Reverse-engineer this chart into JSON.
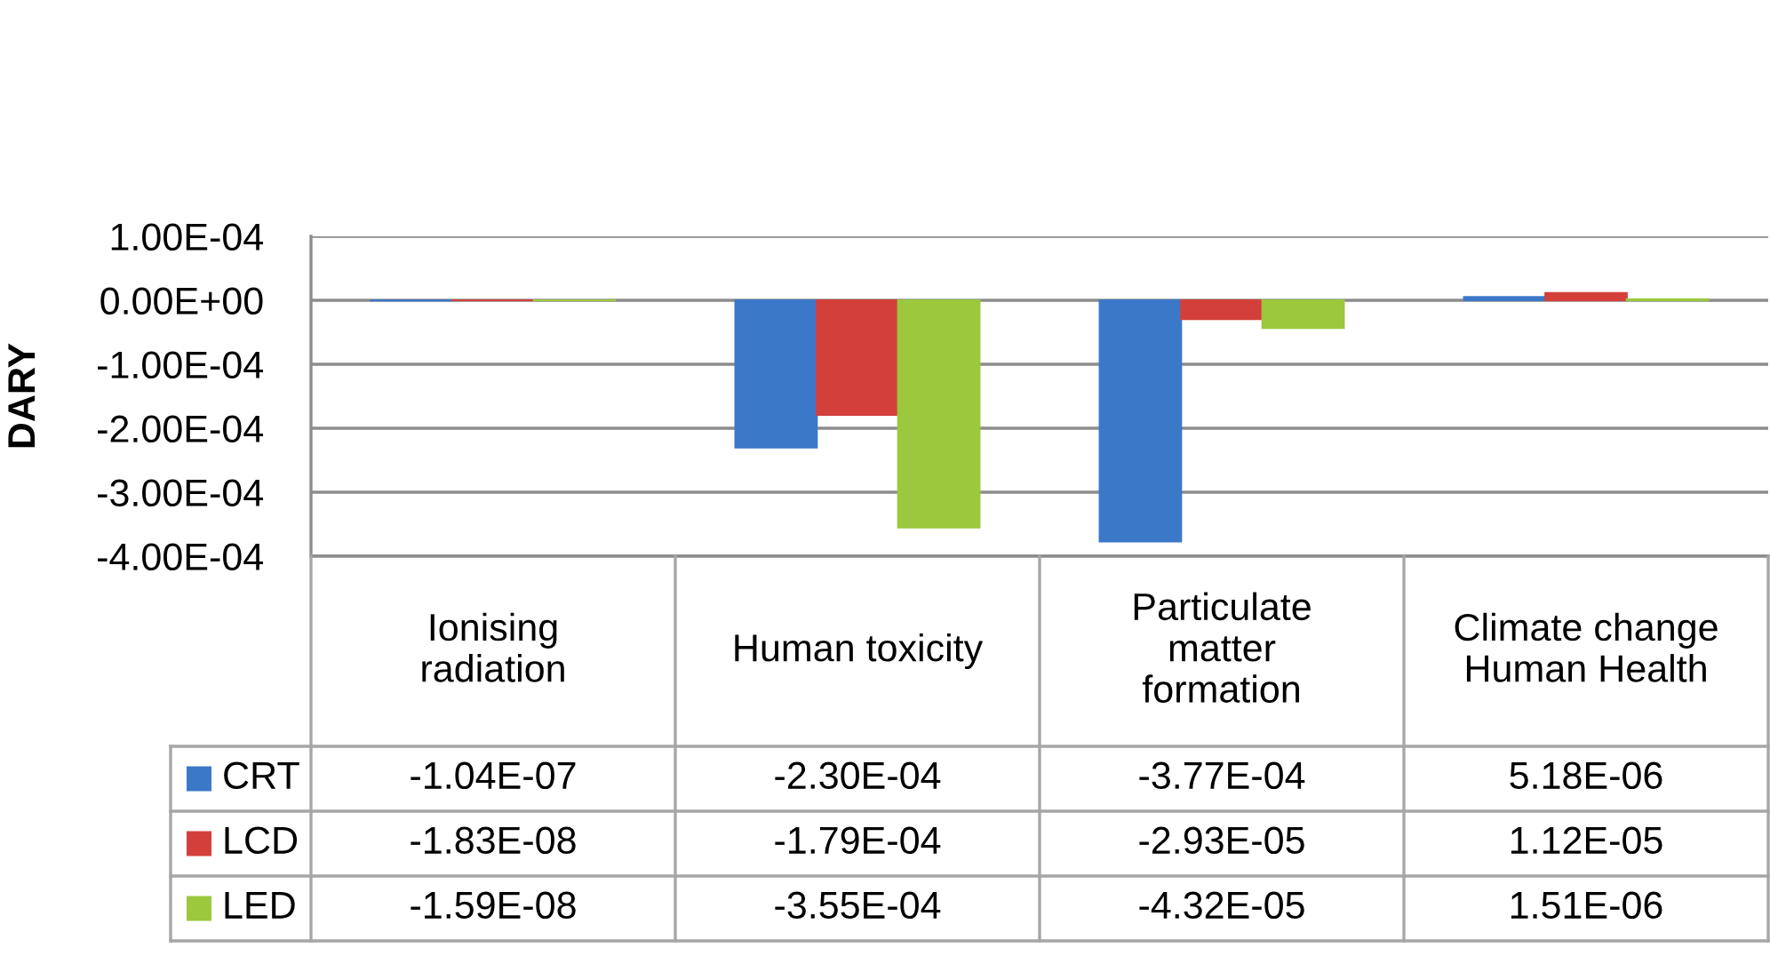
{
  "chart_data": {
    "type": "bar",
    "ylabel": "DARY",
    "categories": [
      "Ionising\nradiation",
      "Human toxicity",
      "Particulate\nmatter\nformation",
      "Climate change\nHuman Health"
    ],
    "series": [
      {
        "name": "CRT",
        "color": "#3c78c8",
        "values": [
          -1.04e-07,
          -0.00023,
          -0.000377,
          5.18e-06
        ],
        "value_labels": [
          "-1.04E-07",
          "-2.30E-04",
          "-3.77E-04",
          "5.18E-06"
        ]
      },
      {
        "name": "LCD",
        "color": "#d3403c",
        "values": [
          -1.83e-08,
          -0.000179,
          -2.93e-05,
          1.12e-05
        ],
        "value_labels": [
          "-1.83E-08",
          "-1.79E-04",
          "-2.93E-05",
          "1.12E-05"
        ]
      },
      {
        "name": "LED",
        "color": "#9bc83c",
        "values": [
          -1.59e-08,
          -0.000355,
          -4.32e-05,
          1.51e-06
        ],
        "value_labels": [
          "-1.59E-08",
          "-3.55E-04",
          "-4.32E-05",
          "1.51E-06"
        ]
      }
    ],
    "ylim": [
      -0.0004,
      0.0001
    ],
    "yticks": [
      {
        "value": 0.0001,
        "label": "1.00E-04"
      },
      {
        "value": 0,
        "label": "0.00E+00"
      },
      {
        "value": -0.0001,
        "label": "-1.00E-04"
      },
      {
        "value": -0.0002,
        "label": "-2.00E-04"
      },
      {
        "value": -0.0003,
        "label": "-3.00E-04"
      },
      {
        "value": -0.0004,
        "label": "-4.00E-04"
      }
    ],
    "grid": "y",
    "legend": "bottom"
  }
}
